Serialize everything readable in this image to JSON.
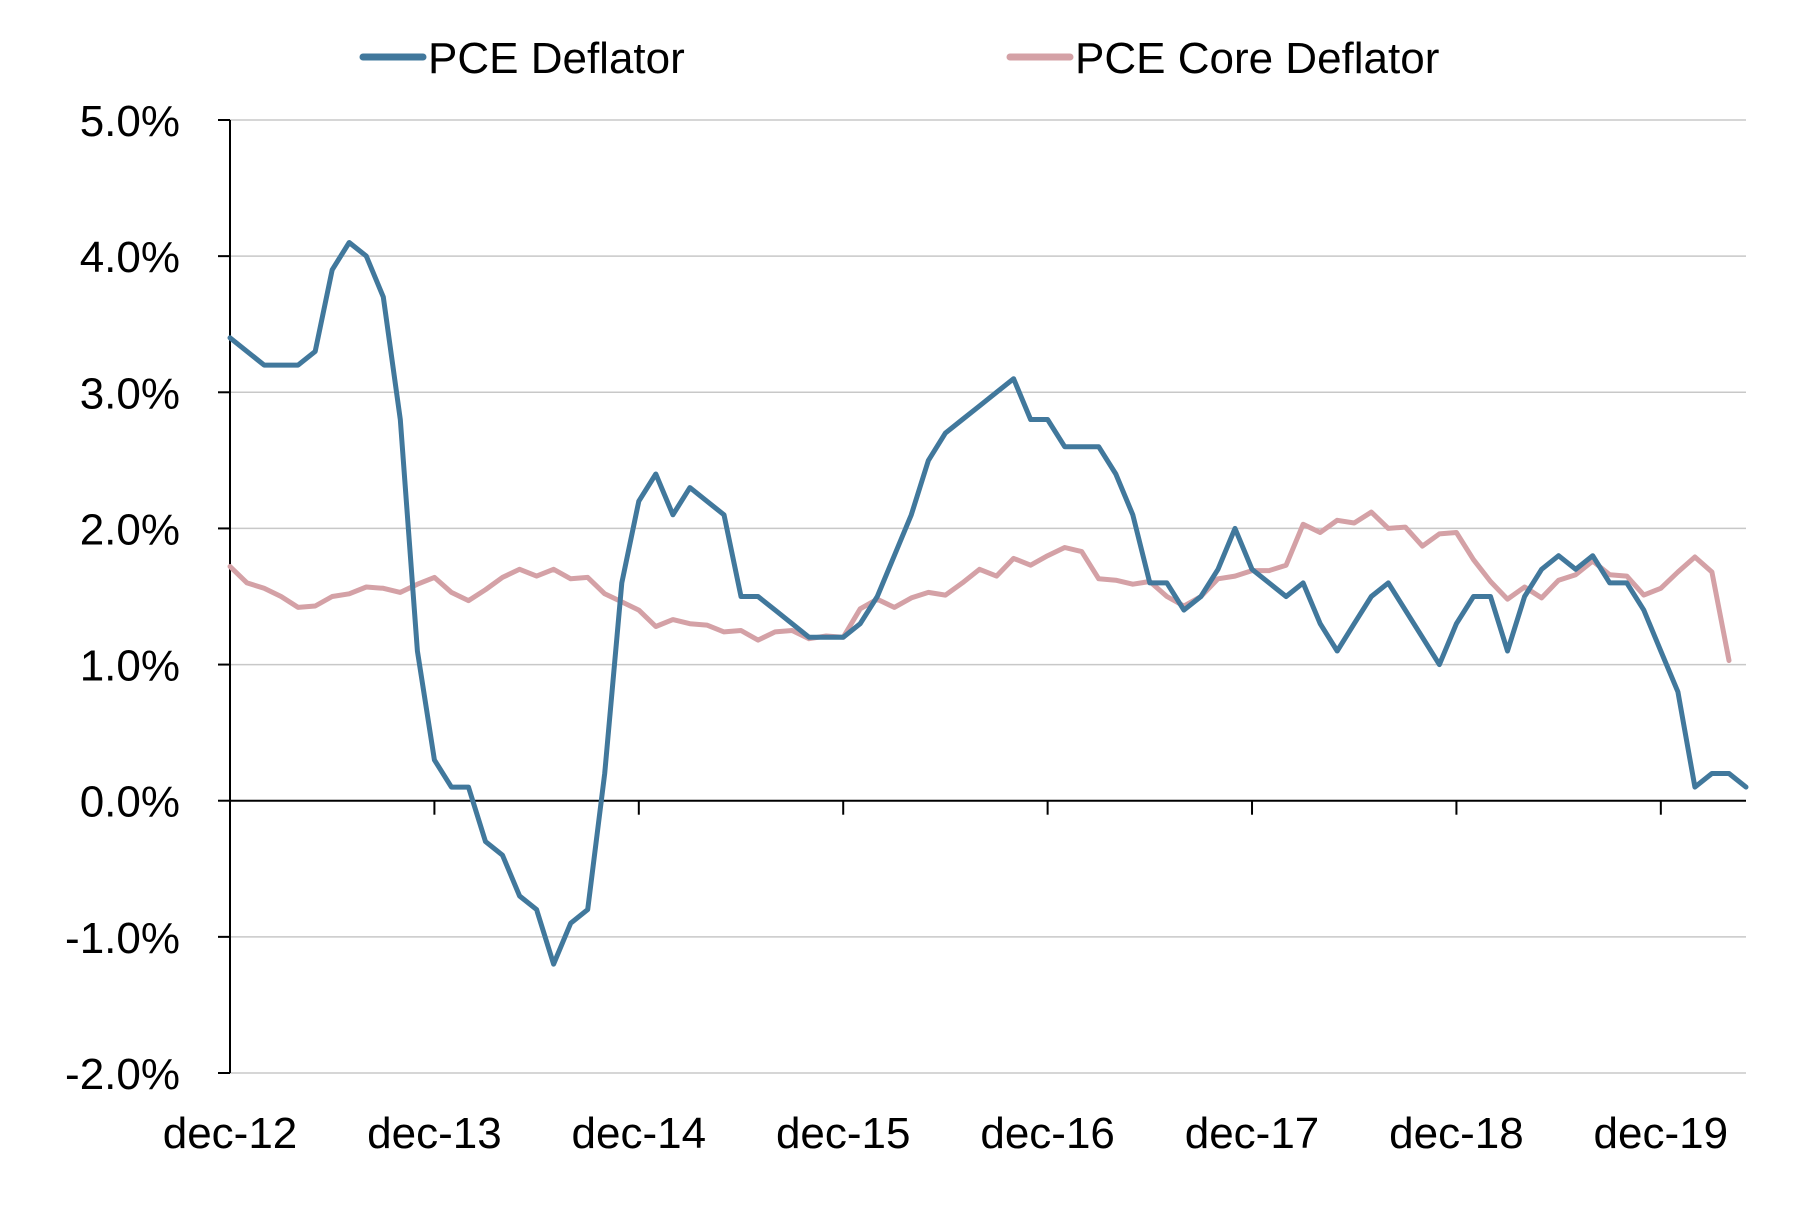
{
  "chart_data": {
    "type": "line",
    "title": "",
    "xlabel": "",
    "ylabel": "",
    "ylim": [
      -2.0,
      5.0
    ],
    "y_ticks": [
      "-2.0%",
      "-1.0%",
      "0.0%",
      "1.0%",
      "2.0%",
      "3.0%",
      "4.0%",
      "5.0%"
    ],
    "y_tick_values": [
      -2,
      -1,
      0,
      1,
      2,
      3,
      4,
      5
    ],
    "x_ticks": [
      "dec-12",
      "dec-13",
      "dec-14",
      "dec-15",
      "dec-16",
      "dec-17",
      "dec-18",
      "dec-19"
    ],
    "x_tick_index": [
      0,
      12,
      24,
      36,
      48,
      60,
      72,
      84
    ],
    "grid": true,
    "legend_position": "top",
    "series": [
      {
        "name": "PCE Deflator",
        "color": "#41789C",
        "values": [
          3.4,
          3.3,
          3.2,
          3.2,
          3.2,
          3.3,
          3.9,
          4.1,
          4.0,
          3.7,
          2.8,
          1.1,
          0.3,
          0.1,
          0.1,
          -0.3,
          -0.4,
          -0.7,
          -0.8,
          -1.2,
          -0.9,
          -0.8,
          0.2,
          1.6,
          2.2,
          2.4,
          2.1,
          2.3,
          2.2,
          2.1,
          1.5,
          1.5,
          1.4,
          1.3,
          1.2,
          1.2,
          1.2,
          1.3,
          1.5,
          1.8,
          2.1,
          2.5,
          2.7,
          2.8,
          2.9,
          3.0,
          3.1,
          2.8,
          2.8,
          2.6,
          2.6,
          2.6,
          2.4,
          2.1,
          1.6,
          1.6,
          1.4,
          1.5,
          1.7,
          2.0,
          1.7,
          1.6,
          1.5,
          1.6,
          1.3,
          1.1,
          1.3,
          1.5,
          1.6,
          1.4,
          1.2,
          1.0,
          1.3,
          1.5,
          1.5,
          1.1,
          1.5,
          1.7,
          1.8,
          1.7,
          1.8,
          1.6,
          1.6,
          1.4,
          1.1,
          0.8,
          0.1,
          0.2,
          0.2,
          0.1
        ]
      },
      {
        "name": "PCE Core Deflator",
        "color": "#D4A1A6",
        "values": [
          1.72,
          1.6,
          1.56,
          1.5,
          1.42,
          1.43,
          1.5,
          1.52,
          1.57,
          1.56,
          1.53,
          1.59,
          1.64,
          1.53,
          1.47,
          1.55,
          1.64,
          1.7,
          1.65,
          1.7,
          1.63,
          1.64,
          1.52,
          1.46,
          1.4,
          1.28,
          1.33,
          1.3,
          1.29,
          1.24,
          1.25,
          1.18,
          1.24,
          1.25,
          1.19,
          1.21,
          1.2,
          1.41,
          1.48,
          1.42,
          1.49,
          1.53,
          1.51,
          1.6,
          1.7,
          1.65,
          1.78,
          1.73,
          1.8,
          1.86,
          1.83,
          1.63,
          1.62,
          1.59,
          1.61,
          1.5,
          1.43,
          1.5,
          1.63,
          1.65,
          1.69,
          1.69,
          1.73,
          2.03,
          1.97,
          2.06,
          2.04,
          2.12,
          2.0,
          2.01,
          1.87,
          1.96,
          1.97,
          1.77,
          1.61,
          1.48,
          1.57,
          1.49,
          1.62,
          1.66,
          1.76,
          1.66,
          1.65,
          1.51,
          1.56,
          1.68,
          1.79,
          1.68,
          1.03
        ]
      }
    ]
  }
}
